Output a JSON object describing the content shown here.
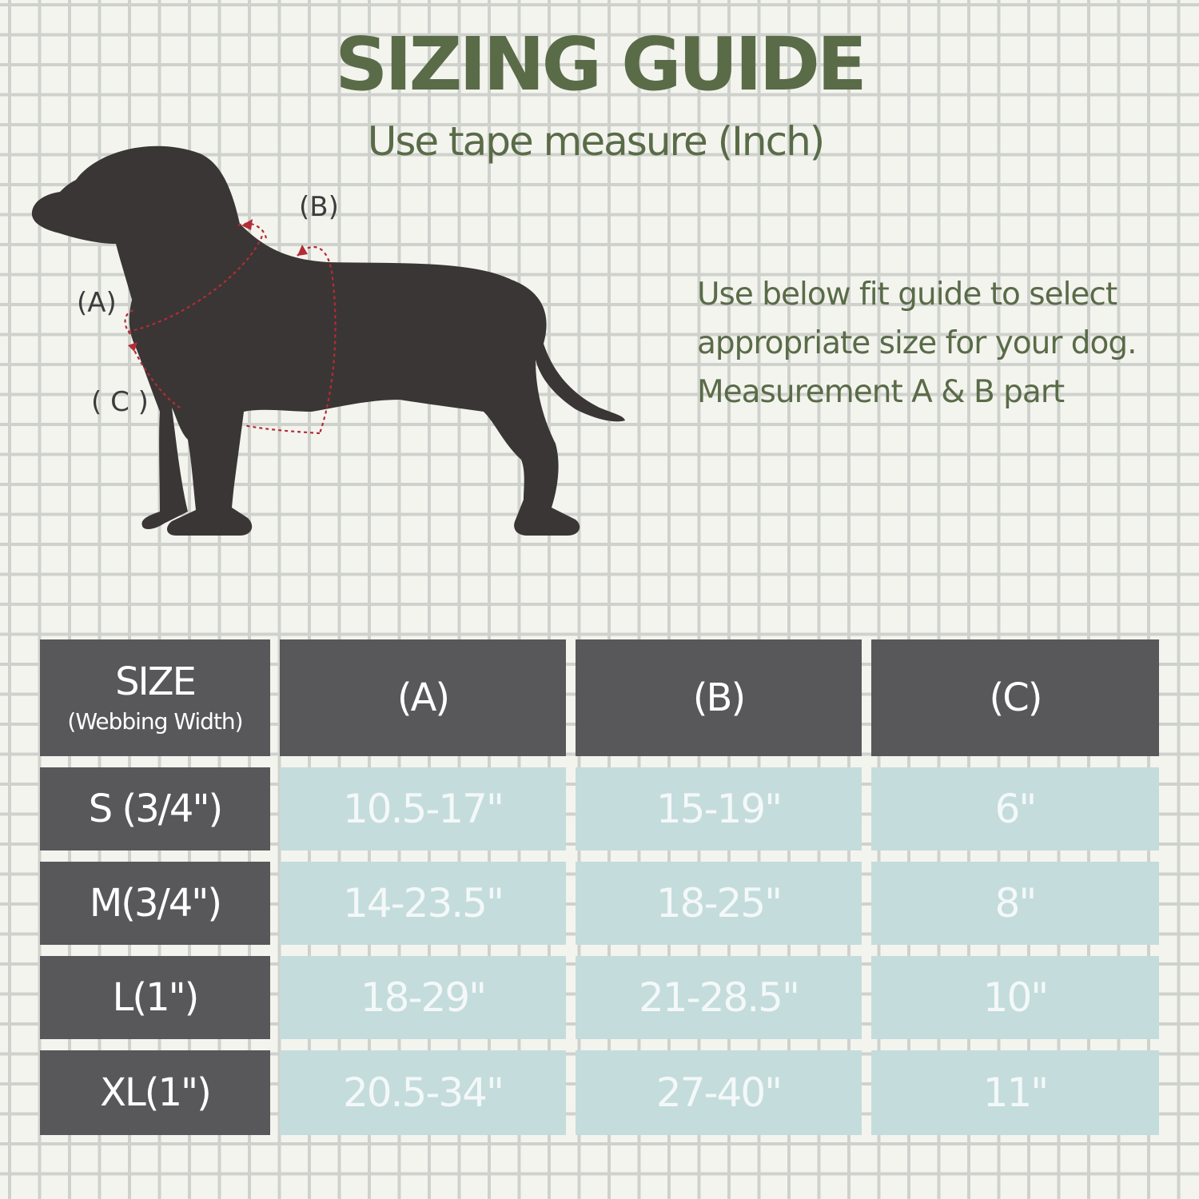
{
  "header": {
    "title": "SIZING GUIDE",
    "subtitle": "Use tape measure (Inch)"
  },
  "diagram": {
    "label_a": "(A)",
    "label_b": "(B)",
    "label_c": "( C )",
    "dog_color": "#3a3635",
    "measure_line_color": "#b32c36"
  },
  "instructions": {
    "lines": [
      "Use below fit guide to select",
      "appropriate size for your dog.",
      "Measurement A & B part"
    ]
  },
  "table": {
    "size_header": "SIZE",
    "size_subheader": "(Webbing Width)",
    "columns": [
      "(A)",
      "(B)",
      "(C)"
    ],
    "rows": [
      {
        "size": "S (3/4\")",
        "values": [
          "10.5-17\"",
          "15-19\"",
          "6\""
        ]
      },
      {
        "size": "M(3/4\")",
        "values": [
          "14-23.5\"",
          "18-25\"",
          "8\""
        ]
      },
      {
        "size": "L(1\")",
        "values": [
          "18-29\"",
          "21-28.5\"",
          "10\""
        ]
      },
      {
        "size": "XL(1\")",
        "values": [
          "20.5-34\"",
          "27-40\"",
          "11\""
        ]
      }
    ]
  },
  "colors": {
    "title": "#5a6b48",
    "header_bg": "#58585b",
    "value_bg": "#c4dcdc",
    "grid_line": "#cfd2cc"
  }
}
